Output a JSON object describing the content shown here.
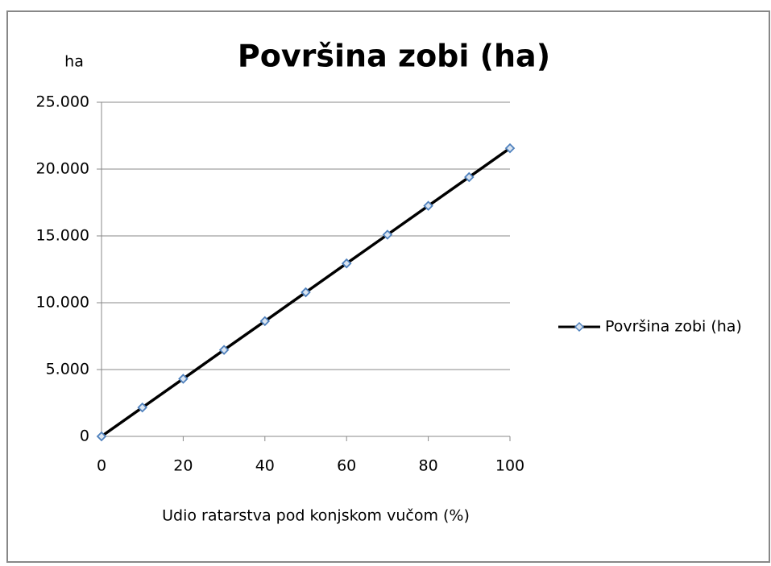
{
  "chart_data": {
    "type": "line",
    "title": "Površina zobi (ha)",
    "y_label": "ha",
    "x_label": "Udio ratarstva pod konjskom vučom (%)",
    "x": [
      0,
      10,
      20,
      30,
      40,
      50,
      60,
      70,
      80,
      90,
      100
    ],
    "series": [
      {
        "name": "Površina zobi (ha)",
        "color": "#000000",
        "marker_color": "#4f81bd",
        "values": [
          0,
          2160,
          4310,
          6470,
          8620,
          10780,
          12940,
          15090,
          17250,
          19400,
          21560
        ]
      }
    ],
    "xlim": [
      0,
      100
    ],
    "xticks": [
      0,
      20,
      40,
      60,
      80,
      100
    ],
    "ylim": [
      0,
      25000
    ],
    "yticks": [
      0,
      {
        "value": 5000,
        "label": "5.000"
      },
      {
        "value": 10000,
        "label": "10.000"
      },
      {
        "value": 15000,
        "label": "15.000"
      },
      {
        "value": 20000,
        "label": "20.000"
      },
      {
        "value": 25000,
        "label": "25.000"
      }
    ],
    "grid": true,
    "legend": "right"
  }
}
